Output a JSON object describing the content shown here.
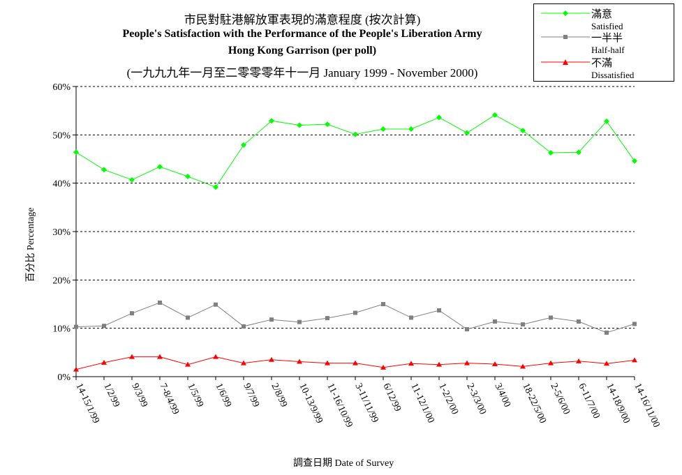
{
  "chart_data": {
    "type": "line",
    "title": "市民對駐港解放軍表現的滿意程度 (按次計算)",
    "subtitle": [
      "People's Satisfaction with the Performance of the People's Liberation Army",
      "Hong Kong Garrison  (per poll)",
      "(一九九九年一月至二零零零年十一月 January 1999 - November 2000)"
    ],
    "xlabel": "調查日期 Date of Survey",
    "ylabel": "百分比 Percentage",
    "ylim": [
      0,
      60
    ],
    "yticks": [
      "0%",
      "10%",
      "20%",
      "30%",
      "40%",
      "50%",
      "60%"
    ],
    "grid": "horizontal dashed",
    "legend_position": "top-right",
    "categories": [
      "14-15/1/99",
      "1/2/99",
      "9/3/99",
      "7-8/4/99",
      "1/5/99",
      "1/6/99",
      "9/7/99",
      "2/8/99",
      "10-13/9/99",
      "11-16/10/99",
      "3-11/11/99",
      "6/12/99",
      "11-12/1/00",
      "1-2/2/00",
      "2-3/3/00",
      "3/4/00",
      "18-22/5/00",
      "2-5/6/00",
      "6-11/7/00",
      "14-18/9/00",
      "14-16/11/00"
    ],
    "series": [
      {
        "name": "滿意",
        "name_en": "Satisfied",
        "color": "#00ff00",
        "marker": "diamond",
        "values": [
          46.4,
          42.8,
          40.7,
          43.4,
          41.4,
          39.2,
          47.9,
          52.9,
          52.0,
          52.2,
          50.1,
          51.2,
          51.2,
          53.6,
          50.4,
          54.1,
          50.9,
          46.3,
          46.4,
          52.8,
          44.6
        ]
      },
      {
        "name": "一半半",
        "name_en": "Half-half",
        "color": "#808080",
        "marker": "square",
        "values": [
          10.3,
          10.5,
          13.1,
          15.3,
          12.2,
          14.9,
          10.4,
          11.8,
          11.3,
          12.1,
          13.2,
          15.0,
          12.2,
          13.7,
          9.8,
          11.4,
          10.8,
          12.2,
          11.4,
          9.1,
          10.9
        ]
      },
      {
        "name": "不滿",
        "name_en": "Dissatisfied",
        "color": "#ff0000",
        "marker": "triangle",
        "values": [
          1.5,
          2.9,
          4.1,
          4.1,
          2.5,
          4.1,
          2.8,
          3.5,
          3.1,
          2.8,
          2.8,
          1.9,
          2.7,
          2.5,
          2.8,
          2.6,
          2.1,
          2.8,
          3.2,
          2.7,
          3.4
        ]
      }
    ]
  }
}
